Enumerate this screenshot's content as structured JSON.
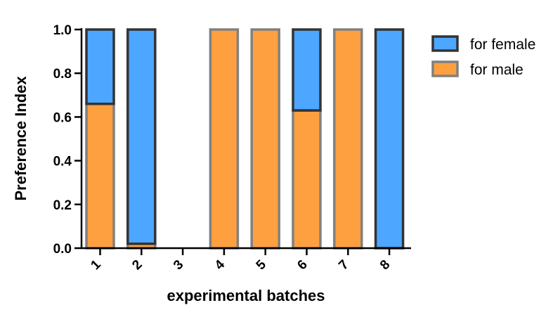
{
  "chart_data": {
    "type": "bar",
    "stacked": true,
    "xlabel": "experimental batches",
    "ylabel": "Preference Index",
    "categories": [
      "1",
      "2",
      "3",
      "4",
      "5",
      "6",
      "7",
      "8"
    ],
    "ylim": [
      0,
      1
    ],
    "yticks": [
      "0.0",
      "0.2",
      "0.4",
      "0.6",
      "0.8",
      "1.0"
    ],
    "series": [
      {
        "name": "for male",
        "color": "#FFA040",
        "border": "#808080",
        "values": [
          0.66,
          0.02,
          0,
          1.0,
          1.0,
          0.63,
          1.0,
          0
        ]
      },
      {
        "name": "for female",
        "color": "#4DA6FF",
        "border": "#333333",
        "values": [
          0.34,
          0.98,
          0,
          0,
          0,
          0.37,
          0,
          1.0
        ]
      }
    ],
    "legend": [
      {
        "label": "for female",
        "color": "#4DA6FF",
        "border": "#333333"
      },
      {
        "label": "for male",
        "color": "#FFA040",
        "border": "#808080"
      }
    ],
    "legend_position": "right",
    "grid": false
  }
}
